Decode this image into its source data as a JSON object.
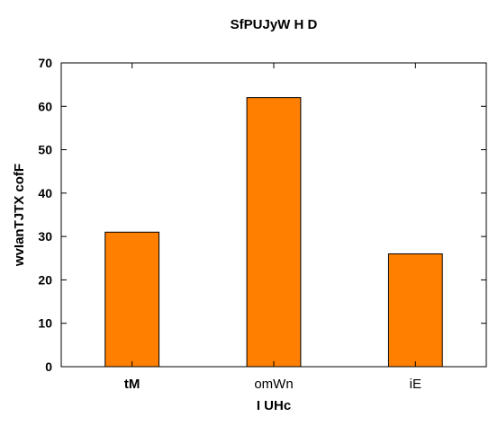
{
  "chart_data": {
    "type": "bar",
    "title": "SfPUJyW H D",
    "xlabel": "I UHc",
    "ylabel": "wvIanTJTX cofF",
    "categories": [
      "tM",
      "omWn",
      "iE"
    ],
    "category_bold": [
      true,
      false,
      false
    ],
    "values": [
      31,
      62,
      26
    ],
    "ylim": [
      0,
      70
    ],
    "yticks": [
      0,
      10,
      20,
      30,
      40,
      50,
      60,
      70
    ],
    "grid": false,
    "colors": {
      "bar_fill": "#ff7f00",
      "bar_edge": "#000000",
      "axis": "#000000"
    }
  }
}
